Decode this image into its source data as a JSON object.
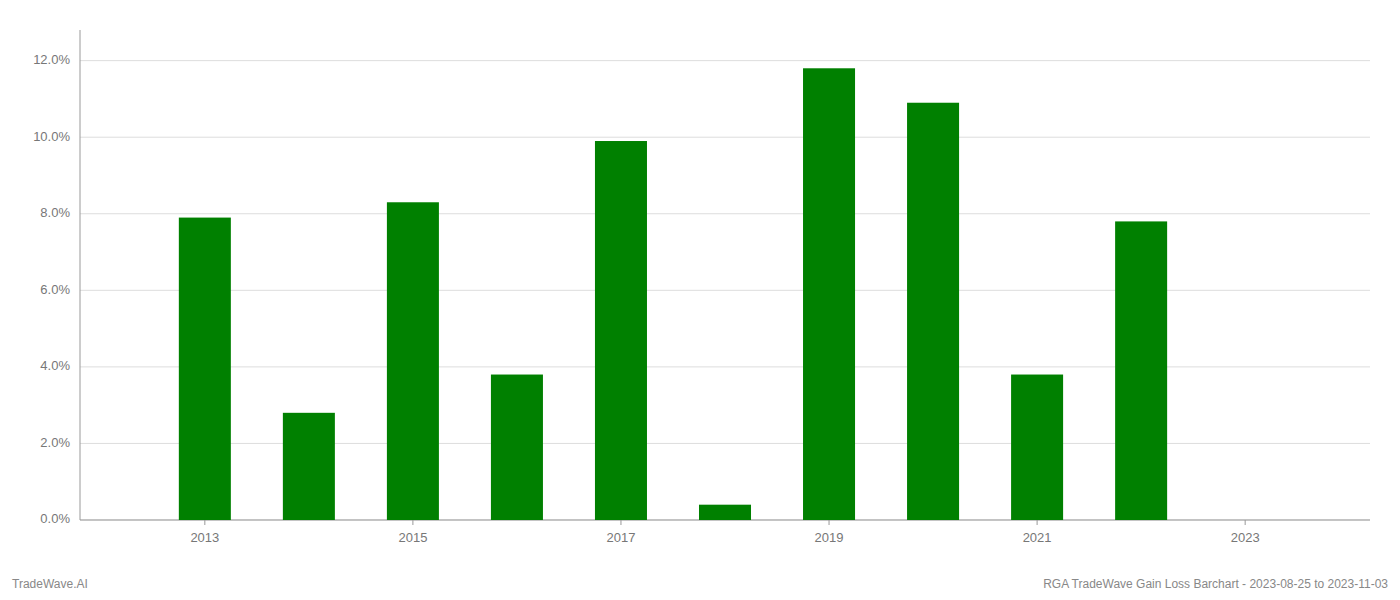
{
  "chart_data": {
    "type": "bar",
    "x": [
      2013,
      2014,
      2015,
      2016,
      2017,
      2018,
      2019,
      2020,
      2021,
      2022
    ],
    "values": [
      0.079,
      0.028,
      0.083,
      0.038,
      0.099,
      0.004,
      0.118,
      0.109,
      0.038,
      0.078
    ],
    "color": "#008000",
    "xlim": [
      2011.8,
      2024.2
    ],
    "xticks": [
      2013,
      2015,
      2017,
      2019,
      2021,
      2023
    ],
    "ylim": [
      0,
      0.128
    ],
    "yticks": [
      {
        "value": 0.0,
        "label": "0.0%"
      },
      {
        "value": 0.02,
        "label": "2.0%"
      },
      {
        "value": 0.04,
        "label": "4.0%"
      },
      {
        "value": 0.06,
        "label": "6.0%"
      },
      {
        "value": 0.08,
        "label": "8.0%"
      },
      {
        "value": 0.1,
        "label": "10.0%"
      },
      {
        "value": 0.12,
        "label": "12.0%"
      }
    ],
    "grid": true,
    "annotations": [
      "TradeWave.AI",
      "RGA TradeWave Gain Loss Barchart - 2023-08-25 to 2023-11-03"
    ]
  }
}
